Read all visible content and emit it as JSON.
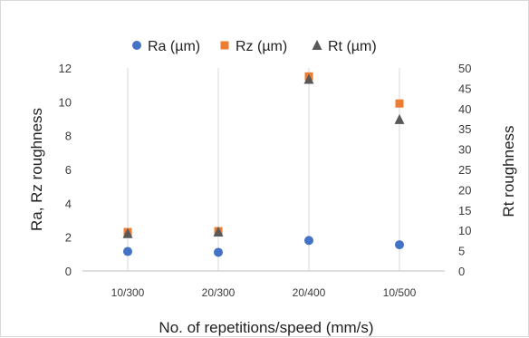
{
  "chart_data": {
    "type": "scatter",
    "title": "",
    "categories": [
      "10/300",
      "20/300",
      "20/400",
      "10/500"
    ],
    "xlabel": "No. of repetitions/speed (mm/s)",
    "ylabel": "Ra, Rz roughness",
    "y2label": "Rt roughness",
    "ylim": [
      0,
      12
    ],
    "y2lim": [
      0,
      50
    ],
    "yticks": [
      0,
      2,
      4,
      6,
      8,
      10,
      12
    ],
    "y2ticks": [
      0,
      5,
      10,
      15,
      20,
      25,
      30,
      35,
      40,
      45,
      50
    ],
    "grid": "vertical at categories",
    "legend_position": "top",
    "series": [
      {
        "name": "Ra (µm)",
        "axis": "left",
        "marker": "circle",
        "color": "#4472C4",
        "values": [
          1.15,
          1.1,
          1.8,
          1.55
        ]
      },
      {
        "name": "Rz (µm)",
        "axis": "left",
        "marker": "square",
        "color": "#ED7D31",
        "values": [
          2.3,
          2.35,
          11.5,
          9.9
        ]
      },
      {
        "name": "Rt (µm)",
        "axis": "right",
        "marker": "triangle",
        "color": "#595959",
        "values": [
          9.2,
          9.6,
          47.2,
          37.3
        ]
      }
    ]
  }
}
